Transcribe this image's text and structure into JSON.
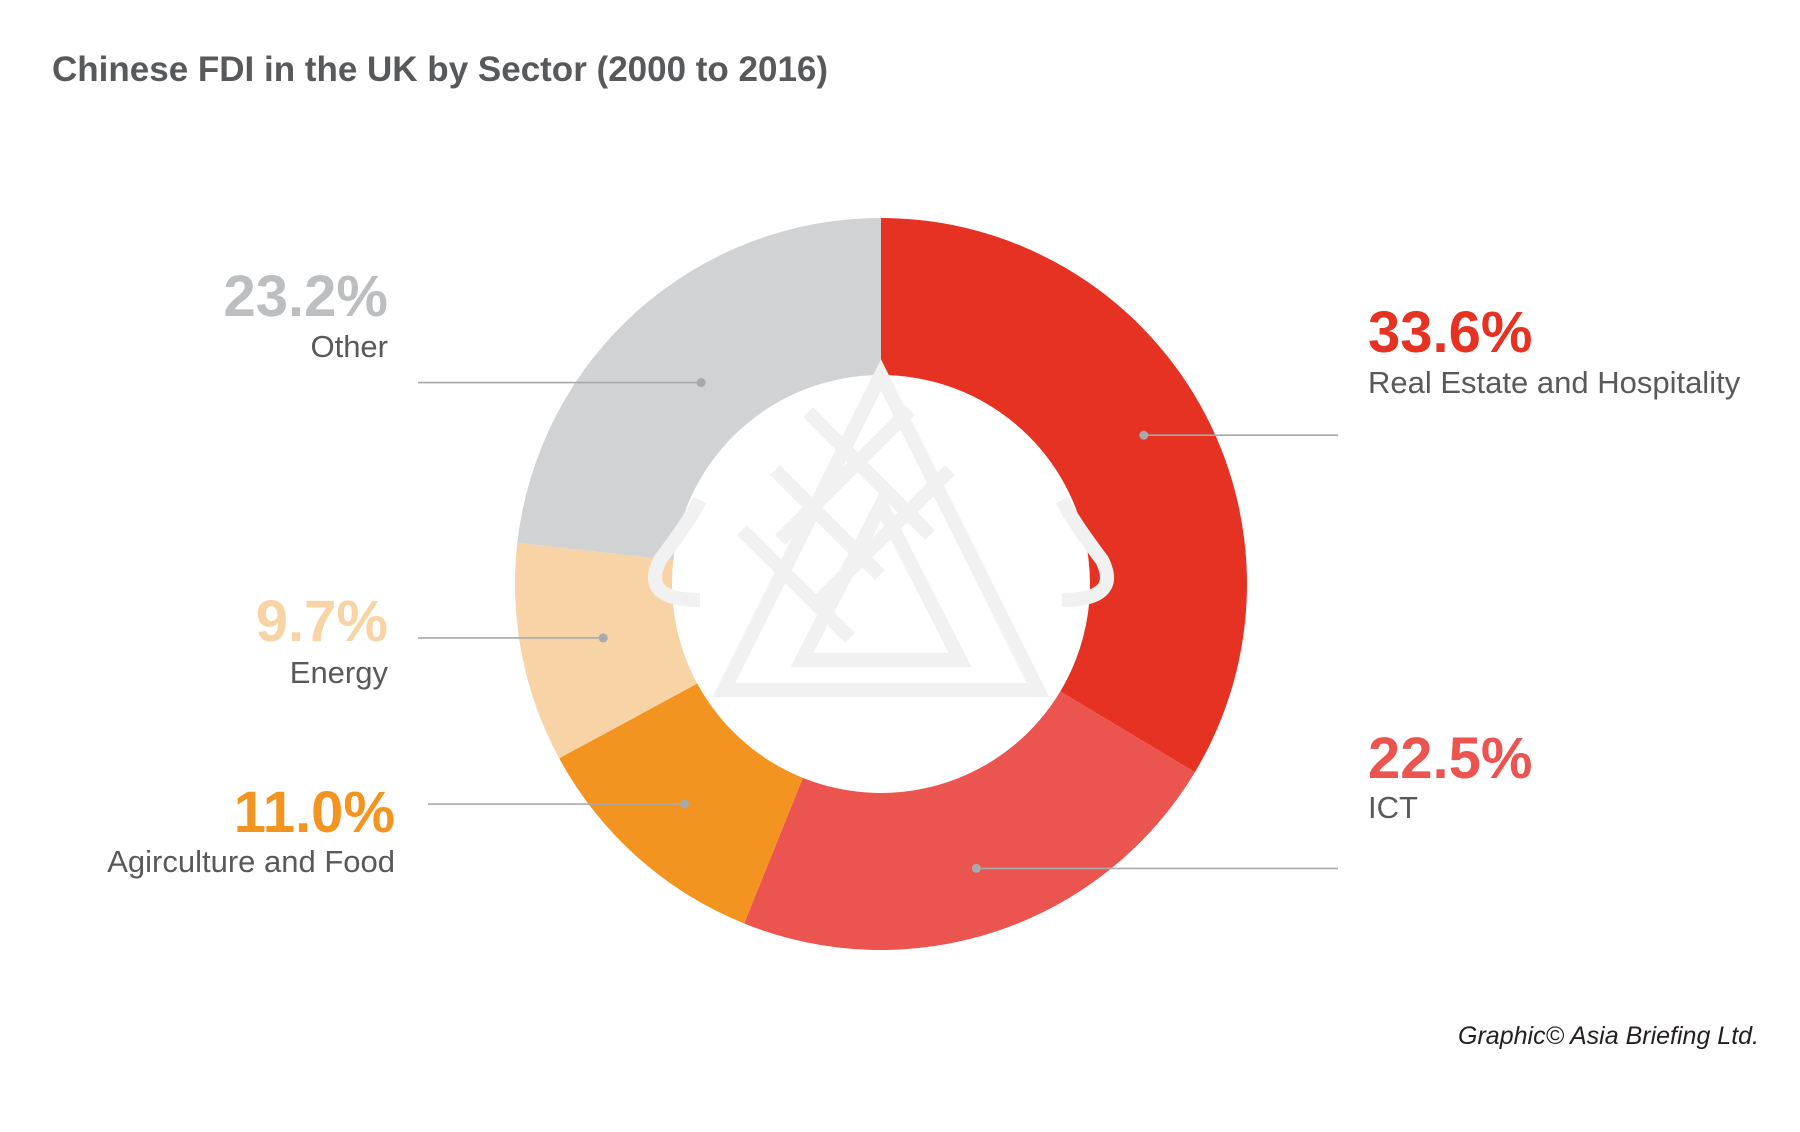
{
  "chart_data": {
    "type": "pie",
    "title": "Chinese FDI in the UK by Sector (2000 to 2016)",
    "donut": true,
    "legend": "none",
    "slices": [
      {
        "label": "Real Estate and Hospitality",
        "value": 33.6,
        "value_label": "33.6%",
        "color": "#E53222"
      },
      {
        "label": "ICT",
        "value": 22.5,
        "value_label": "22.5%",
        "color": "#EC5450"
      },
      {
        "label": "Agirculture and Food",
        "value": 11.0,
        "value_label": "11.0%",
        "color": "#F39420"
      },
      {
        "label": "Energy",
        "value": 9.7,
        "value_label": "9.7%",
        "color": "#F8D3A6"
      },
      {
        "label": "Other",
        "value": 23.2,
        "value_label": "23.2%",
        "color": "#D1D2D4"
      }
    ]
  },
  "colors": {
    "title": "#58595B",
    "category_label": "#58595B",
    "leader_line": "#A7A9AC",
    "background": "#FFFFFF",
    "watermark": "#F1F1F1"
  },
  "credit": "Graphic© Asia Briefing Ltd."
}
